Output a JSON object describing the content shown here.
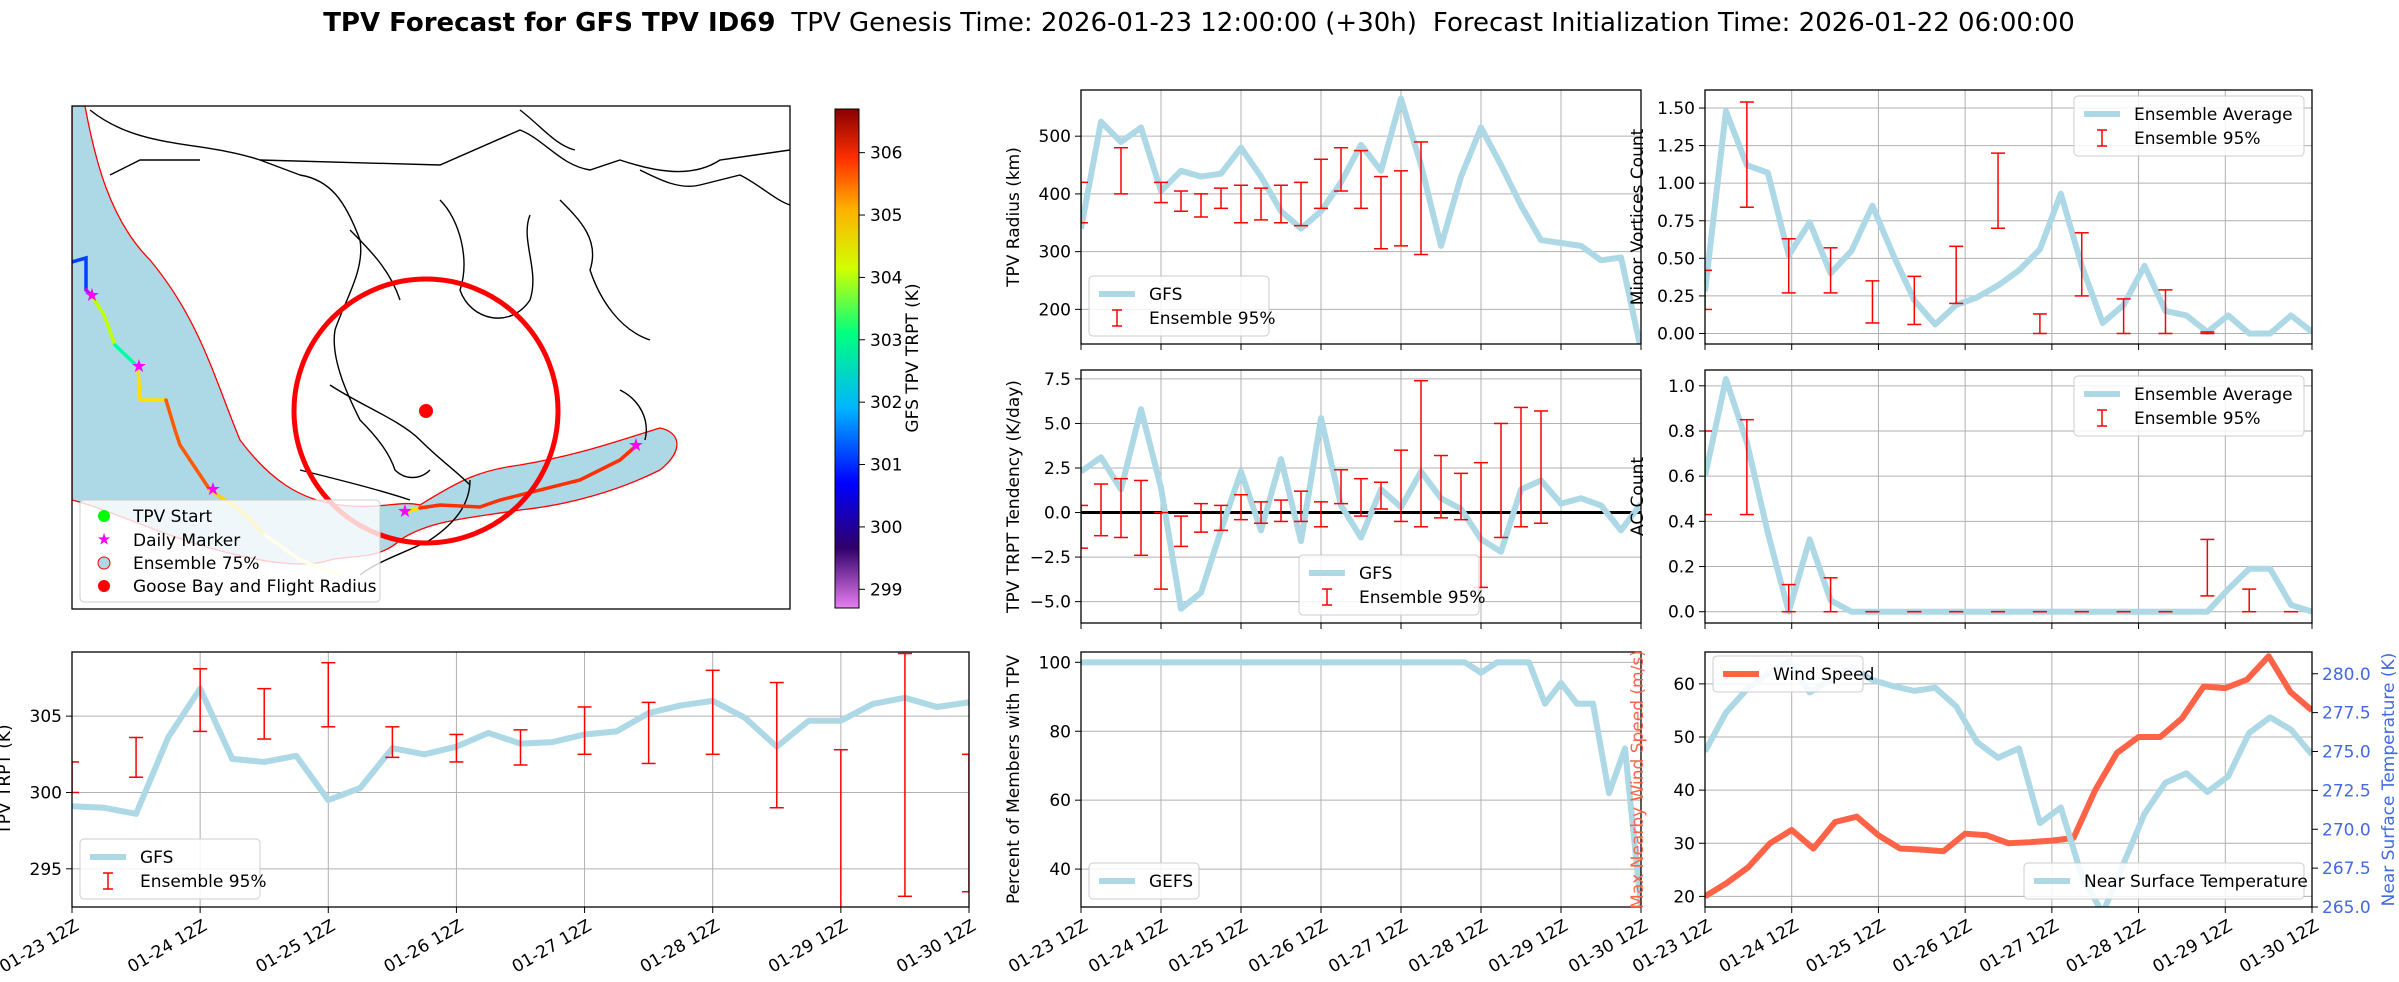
{
  "title": {
    "bold": "TPV Forecast for GFS TPV ID69",
    "genesis": "TPV Genesis Time: 2026-01-23 12:00:00 (+30h)",
    "init": "Forecast Initialization Time: 2026-01-22 06:00:00"
  },
  "colors": {
    "gfs": "#add8e6",
    "ens": "#ff0000",
    "wind": "#ff6347",
    "temp_axis": "#4169e1",
    "ocean": "#add8e6"
  },
  "time_ticks": [
    "01-23 12Z",
    "01-24 12Z",
    "01-25 12Z",
    "01-26 12Z",
    "01-27 12Z",
    "01-28 12Z",
    "01-29 12Z",
    "01-30 12Z"
  ],
  "map": {
    "colorbar_label": "GFS TPV TRPT (K)",
    "colorbar_ticks": [
      "306",
      "305",
      "304",
      "303",
      "302",
      "301",
      "300",
      "299"
    ],
    "colorbar_range": [
      298.7,
      306.7
    ],
    "legend": [
      "TPV Start",
      "Daily Marker",
      "Ensemble 75%",
      "Goose Bay and Flight Radius"
    ]
  },
  "chart_data": [
    {
      "id": "radius",
      "type": "line",
      "ylabel": "TPV Radius (km)",
      "ylim": [
        140,
        580
      ],
      "yticks": [
        "200",
        "300",
        "400",
        "500"
      ],
      "ytick_values": [
        200,
        300,
        400,
        500
      ],
      "legend": [
        "GFS",
        "Ensemble 95%"
      ],
      "legend_pos": "lower-left",
      "series": [
        {
          "name": "GFS",
          "values": [
            340,
            525,
            490,
            515,
            405,
            440,
            430,
            435,
            480,
            430,
            370,
            340,
            370,
            420,
            485,
            440,
            565,
            450,
            310,
            430,
            515,
            450,
            380,
            320,
            315,
            310,
            285,
            290,
            130
          ]
        }
      ],
      "error_bars": [
        [
          0,
          350,
          420
        ],
        [
          2,
          400,
          480
        ],
        [
          4,
          385,
          420
        ],
        [
          5,
          370,
          405
        ],
        [
          6,
          360,
          400
        ],
        [
          7,
          375,
          410
        ],
        [
          8,
          350,
          415
        ],
        [
          9,
          355,
          410
        ],
        [
          10,
          350,
          415
        ],
        [
          11,
          345,
          420
        ],
        [
          12,
          375,
          460
        ],
        [
          13,
          405,
          480
        ],
        [
          14,
          375,
          475
        ],
        [
          15,
          305,
          430
        ],
        [
          16,
          310,
          440
        ],
        [
          17,
          295,
          490
        ]
      ]
    },
    {
      "id": "minor",
      "type": "line",
      "ylabel": "Minor Vortices Count",
      "ylim": [
        -0.07,
        1.62
      ],
      "yticks": [
        "0.00",
        "0.25",
        "0.50",
        "0.75",
        "1.00",
        "1.25",
        "1.50"
      ],
      "ytick_values": [
        0,
        0.25,
        0.5,
        0.75,
        1,
        1.25,
        1.5
      ],
      "legend": [
        "Ensemble Average",
        "Ensemble 95%"
      ],
      "legend_pos": "upper-right",
      "series": [
        {
          "name": "Ensemble Average",
          "values": [
            0.28,
            1.48,
            1.12,
            1.07,
            0.52,
            0.74,
            0.4,
            0.55,
            0.85,
            0.52,
            0.22,
            0.06,
            0.19,
            0.24,
            0.32,
            0.42,
            0.56,
            0.93,
            0.45,
            0.07,
            0.19,
            0.45,
            0.15,
            0.12,
            0.01,
            0.12,
            0.0,
            0.0,
            0.12,
            0.01
          ]
        }
      ],
      "error_bars": [
        [
          0,
          0.16,
          0.42
        ],
        [
          2,
          0.84,
          1.54
        ],
        [
          4,
          0.27,
          0.63
        ],
        [
          6,
          0.27,
          0.57
        ],
        [
          8,
          0.07,
          0.35
        ],
        [
          10,
          0.06,
          0.38
        ],
        [
          12,
          0.2,
          0.58
        ],
        [
          14,
          0.7,
          1.2
        ],
        [
          16,
          0.0,
          0.13
        ],
        [
          18,
          0.25,
          0.67
        ],
        [
          20,
          0.0,
          0.23
        ],
        [
          22,
          0.0,
          0.29
        ],
        [
          24,
          0.0,
          0.01
        ]
      ]
    },
    {
      "id": "tendency",
      "type": "line",
      "ylabel": "TPV TRPT Tendency (K/day)",
      "ylim": [
        -6.2,
        8.0
      ],
      "yticks": [
        "−5.0",
        "−2.5",
        "0.0",
        "2.5",
        "5.0",
        "7.5"
      ],
      "ytick_values": [
        -5,
        -2.5,
        0,
        2.5,
        5,
        7.5
      ],
      "legend": [
        "GFS",
        "Ensemble 95%"
      ],
      "legend_pos": "lower-center",
      "series": [
        {
          "name": "GFS",
          "values": [
            2.3,
            3.1,
            1.3,
            5.8,
            1.4,
            -5.4,
            -4.5,
            -1.0,
            2.3,
            -1.0,
            3.0,
            -1.6,
            5.3,
            0.4,
            -1.4,
            1.3,
            0.3,
            2.3,
            0.8,
            0.2,
            -1.5,
            -2.2,
            1.3,
            1.8,
            0.5,
            0.8,
            0.4,
            -1.0,
            0.5
          ]
        }
      ],
      "error_bars": [
        [
          0,
          -2.0,
          0.4
        ],
        [
          1,
          -1.3,
          1.6
        ],
        [
          2,
          -1.4,
          1.9
        ],
        [
          3,
          -2.4,
          1.8
        ],
        [
          4,
          -4.3,
          0.0
        ],
        [
          5,
          -1.9,
          -0.2
        ],
        [
          6,
          -1.1,
          0.5
        ],
        [
          7,
          -1.0,
          0.4
        ],
        [
          8,
          -0.4,
          1.0
        ],
        [
          9,
          -0.6,
          0.6
        ],
        [
          10,
          -0.5,
          0.7
        ],
        [
          11,
          -0.5,
          1.2
        ],
        [
          12,
          -0.8,
          0.6
        ],
        [
          13,
          0.5,
          2.4
        ],
        [
          14,
          -0.2,
          1.9
        ],
        [
          15,
          0.2,
          1.7
        ],
        [
          16,
          -0.5,
          3.5
        ],
        [
          17,
          -0.8,
          7.4
        ],
        [
          18,
          -0.3,
          3.2
        ],
        [
          19,
          -0.4,
          2.2
        ],
        [
          20,
          -4.2,
          2.8
        ],
        [
          21,
          -1.4,
          5.0
        ],
        [
          22,
          -0.8,
          5.9
        ],
        [
          23,
          -0.6,
          5.7
        ]
      ]
    },
    {
      "id": "ac",
      "type": "line",
      "ylabel": "AC Count",
      "ylim": [
        -0.05,
        1.07
      ],
      "yticks": [
        "0.0",
        "0.2",
        "0.4",
        "0.6",
        "0.8",
        "1.0"
      ],
      "ytick_values": [
        0,
        0.2,
        0.4,
        0.6,
        0.8,
        1.0
      ],
      "legend": [
        "Ensemble Average",
        "Ensemble 95%"
      ],
      "legend_pos": "upper-right",
      "series": [
        {
          "name": "Ensemble Average",
          "values": [
            0.6,
            1.03,
            0.75,
            0.35,
            0.0,
            0.32,
            0.05,
            0.0,
            0.0,
            0.0,
            0.0,
            0.0,
            0.0,
            0.0,
            0.0,
            0.0,
            0.0,
            0.0,
            0.0,
            0.0,
            0.0,
            0.0,
            0.0,
            0.0,
            0.0,
            0.1,
            0.19,
            0.19,
            0.03,
            0.0
          ]
        }
      ],
      "error_bars": [
        [
          0,
          0.43,
          0.8
        ],
        [
          2,
          0.43,
          0.85
        ],
        [
          4,
          0.0,
          0.12
        ],
        [
          6,
          0.0,
          0.15
        ],
        [
          8,
          0.0,
          0.0
        ],
        [
          10,
          0.0,
          0.0
        ],
        [
          12,
          0.0,
          0.0
        ],
        [
          14,
          0.0,
          0.0
        ],
        [
          16,
          0.0,
          0.0
        ],
        [
          18,
          0.0,
          0.0
        ],
        [
          20,
          0.0,
          0.0
        ],
        [
          22,
          0.0,
          0.0
        ],
        [
          24,
          0.07,
          0.32
        ],
        [
          26,
          0.0,
          0.1
        ],
        [
          28,
          0.0,
          0.0
        ]
      ]
    },
    {
      "id": "trpt",
      "type": "line",
      "ylabel": "TPV TRPT (K)",
      "ylim": [
        292.5,
        309.2
      ],
      "yticks": [
        "295",
        "300",
        "305"
      ],
      "ytick_values": [
        295,
        300,
        305
      ],
      "legend": [
        "GFS",
        "Ensemble 95%"
      ],
      "legend_pos": "lower-left",
      "series": [
        {
          "name": "GFS",
          "values": [
            299.1,
            299.0,
            298.6,
            303.6,
            306.8,
            302.2,
            302.0,
            302.4,
            299.5,
            300.3,
            302.9,
            302.5,
            303.0,
            303.9,
            303.2,
            303.3,
            303.8,
            304.0,
            305.2,
            305.7,
            306.0,
            304.9,
            303.0,
            304.7,
            304.7,
            305.8,
            306.2,
            305.6,
            305.9
          ]
        }
      ],
      "error_bars": [
        [
          0,
          300.0,
          302.0
        ],
        [
          2,
          301.0,
          303.6
        ],
        [
          4,
          304.0,
          308.1
        ],
        [
          6,
          303.5,
          306.8
        ],
        [
          8,
          304.3,
          308.5
        ],
        [
          10,
          302.3,
          304.3
        ],
        [
          12,
          302.0,
          303.8
        ],
        [
          14,
          301.8,
          304.1
        ],
        [
          16,
          302.5,
          305.6
        ],
        [
          18,
          301.9,
          305.9
        ],
        [
          20,
          302.5,
          308.0
        ],
        [
          22,
          299.0,
          307.2
        ],
        [
          24,
          292.3,
          302.8
        ],
        [
          26,
          293.2,
          309.1
        ],
        [
          28,
          293.5,
          302.5
        ]
      ]
    },
    {
      "id": "percent",
      "type": "line",
      "ylabel": "Percent of Members with TPV",
      "ylim": [
        29,
        103
      ],
      "yticks": [
        "40",
        "60",
        "80",
        "100"
      ],
      "ytick_values": [
        40,
        60,
        80,
        100
      ],
      "legend": [
        "GEFS"
      ],
      "legend_pos": "lower-left",
      "series": [
        {
          "name": "GEFS",
          "values": [
            100,
            100,
            100,
            100,
            100,
            100,
            100,
            100,
            100,
            100,
            100,
            100,
            100,
            100,
            100,
            100,
            100,
            100,
            100,
            100,
            100,
            100,
            100,
            100,
            100,
            97,
            100,
            100,
            100,
            88,
            94,
            88,
            88,
            62,
            75,
            29
          ]
        }
      ]
    },
    {
      "id": "wind_temp",
      "type": "line",
      "ylabel": "Max Nearby Wind Speed (m/s)",
      "ylim": [
        18,
        66
      ],
      "yticks": [
        "20",
        "30",
        "40",
        "50",
        "60"
      ],
      "ytick_values": [
        20,
        30,
        40,
        50,
        60
      ],
      "ylabel2": "Near Surface Temperature (K)",
      "ylim2": [
        265,
        281.4
      ],
      "yticks2": [
        "265.0",
        "267.5",
        "270.0",
        "272.5",
        "275.0",
        "277.5",
        "280.0"
      ],
      "ytick2_values": [
        265,
        267.5,
        270,
        272.5,
        275,
        277.5,
        280
      ],
      "legend": [
        "Wind Speed"
      ],
      "legend2": [
        "Near Surface Temperature"
      ],
      "series": [
        {
          "name": "Wind Speed",
          "axis": "left",
          "values": [
            20.0,
            22.5,
            25.5,
            30.0,
            32.5,
            29.0,
            34.0,
            35.0,
            31.5,
            29.0,
            28.8,
            28.5,
            31.8,
            31.5,
            30.0,
            30.2,
            30.5,
            31.0,
            40.0,
            47.0,
            50.0,
            50.0,
            53.5,
            59.5,
            59.2,
            60.8,
            65.2,
            58.5,
            55.0
          ]
        },
        {
          "name": "Near Surface Temperature",
          "axis": "right",
          "values": [
            275.0,
            277.5,
            279.0,
            280.0,
            280.8,
            278.8,
            279.6,
            280.4,
            279.6,
            279.2,
            278.9,
            279.1,
            277.9,
            275.6,
            274.6,
            275.2,
            270.4,
            271.4,
            267.0,
            264.6,
            267.8,
            271.0,
            273.0,
            273.6,
            272.4,
            273.4,
            276.2,
            277.2,
            276.4,
            274.8
          ]
        }
      ]
    }
  ]
}
